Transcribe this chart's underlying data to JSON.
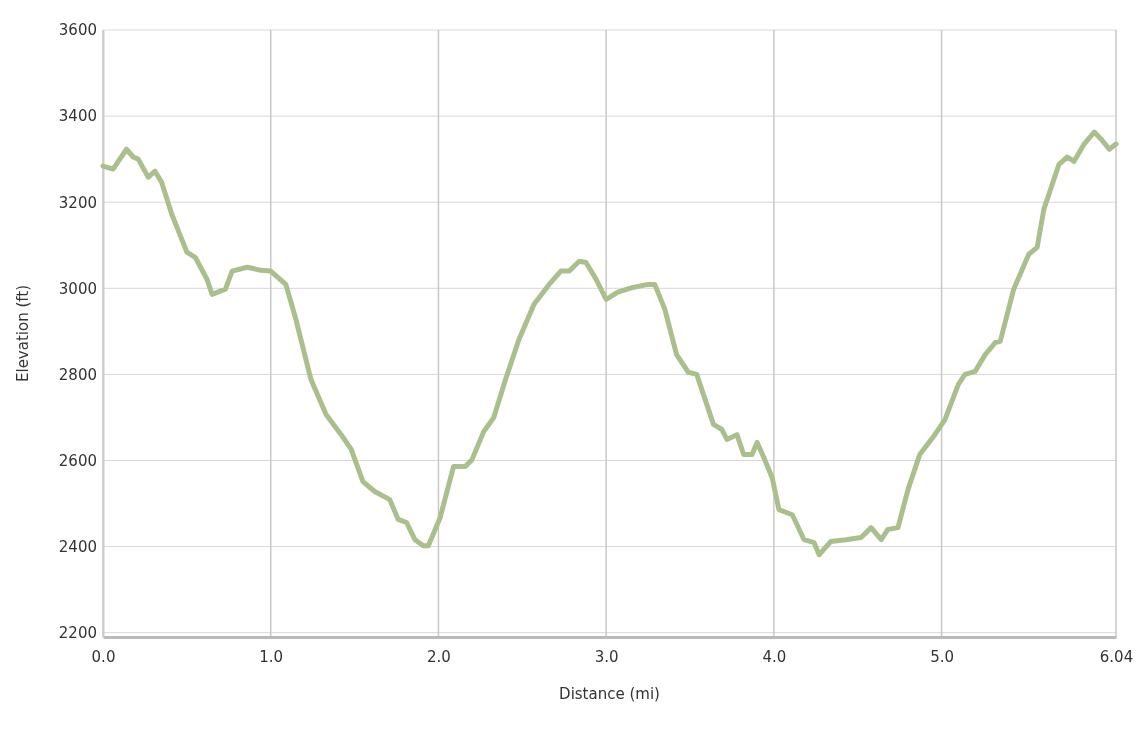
{
  "chart_data": {
    "type": "line",
    "xlabel": "Distance (mi)",
    "ylabel": "Elevation (ft)",
    "xlim": [
      0,
      6.04
    ],
    "ylim": [
      2190,
      3600
    ],
    "xticks": [
      {
        "value": 0,
        "label": "0.0"
      },
      {
        "value": 1,
        "label": "1.0"
      },
      {
        "value": 2,
        "label": "2.0"
      },
      {
        "value": 3,
        "label": "3.0"
      },
      {
        "value": 4,
        "label": "4.0"
      },
      {
        "value": 5,
        "label": "5.0"
      },
      6.04
    ],
    "yticks": [
      2200,
      2400,
      2600,
      2800,
      3000,
      3200,
      3400,
      3600
    ],
    "grid": true,
    "marker": "none",
    "line_style": "solid",
    "series": [
      {
        "color": "#a9c08c",
        "x": [
          0,
          0.06,
          0.14,
          0.18,
          0.21,
          0.27,
          0.31,
          0.35,
          0.41,
          0.5,
          0.55,
          0.62,
          0.65,
          0.73,
          0.77,
          0.86,
          0.94,
          1.0,
          1.09,
          1.15,
          1.24,
          1.33,
          1.42,
          1.48,
          1.55,
          1.62,
          1.71,
          1.76,
          1.81,
          1.86,
          1.91,
          1.94,
          2.01,
          2.09,
          2.16,
          2.2,
          2.27,
          2.33,
          2.4,
          2.48,
          2.57,
          2.66,
          2.73,
          2.78,
          2.84,
          2.88,
          2.94,
          3.0,
          3.07,
          3.16,
          3.25,
          3.29,
          3.35,
          3.42,
          3.49,
          3.54,
          3.59,
          3.64,
          3.69,
          3.72,
          3.78,
          3.82,
          3.87,
          3.9,
          3.94,
          3.99,
          4.03,
          4.11,
          4.18,
          4.24,
          4.27,
          4.34,
          4.43,
          4.52,
          4.58,
          4.64,
          4.68,
          4.74,
          4.8,
          4.87,
          4.96,
          5.02,
          5.1,
          5.14,
          5.2,
          5.26,
          5.32,
          5.35,
          5.43,
          5.52,
          5.57,
          5.61,
          5.65,
          5.7,
          5.75,
          5.79,
          5.85,
          5.91,
          5.95,
          6.0,
          6.04
        ],
        "values": [
          3284,
          3277,
          3323,
          3305,
          3300,
          3258,
          3272,
          3246,
          3172,
          3084,
          3072,
          3021,
          2986,
          2998,
          3040,
          3049,
          3042,
          3040,
          3009,
          2928,
          2788,
          2707,
          2660,
          2626,
          2551,
          2528,
          2509,
          2463,
          2456,
          2416,
          2402,
          2402,
          2467,
          2586,
          2586,
          2602,
          2667,
          2700,
          2788,
          2881,
          2963,
          3009,
          3040,
          3040,
          3063,
          3060,
          3021,
          2974,
          2991,
          3002,
          3009,
          3009,
          2951,
          2846,
          2805,
          2800,
          2742,
          2684,
          2672,
          2649,
          2660,
          2614,
          2614,
          2642,
          2607,
          2560,
          2486,
          2474,
          2416,
          2409,
          2381,
          2412,
          2416,
          2421,
          2444,
          2416,
          2440,
          2444,
          2533,
          2614,
          2660,
          2695,
          2777,
          2800,
          2807,
          2846,
          2874,
          2877,
          2998,
          3079,
          3095,
          3184,
          3230,
          3288,
          3305,
          3295,
          3335,
          3363,
          3347,
          3323,
          3335
        ]
      }
    ]
  }
}
